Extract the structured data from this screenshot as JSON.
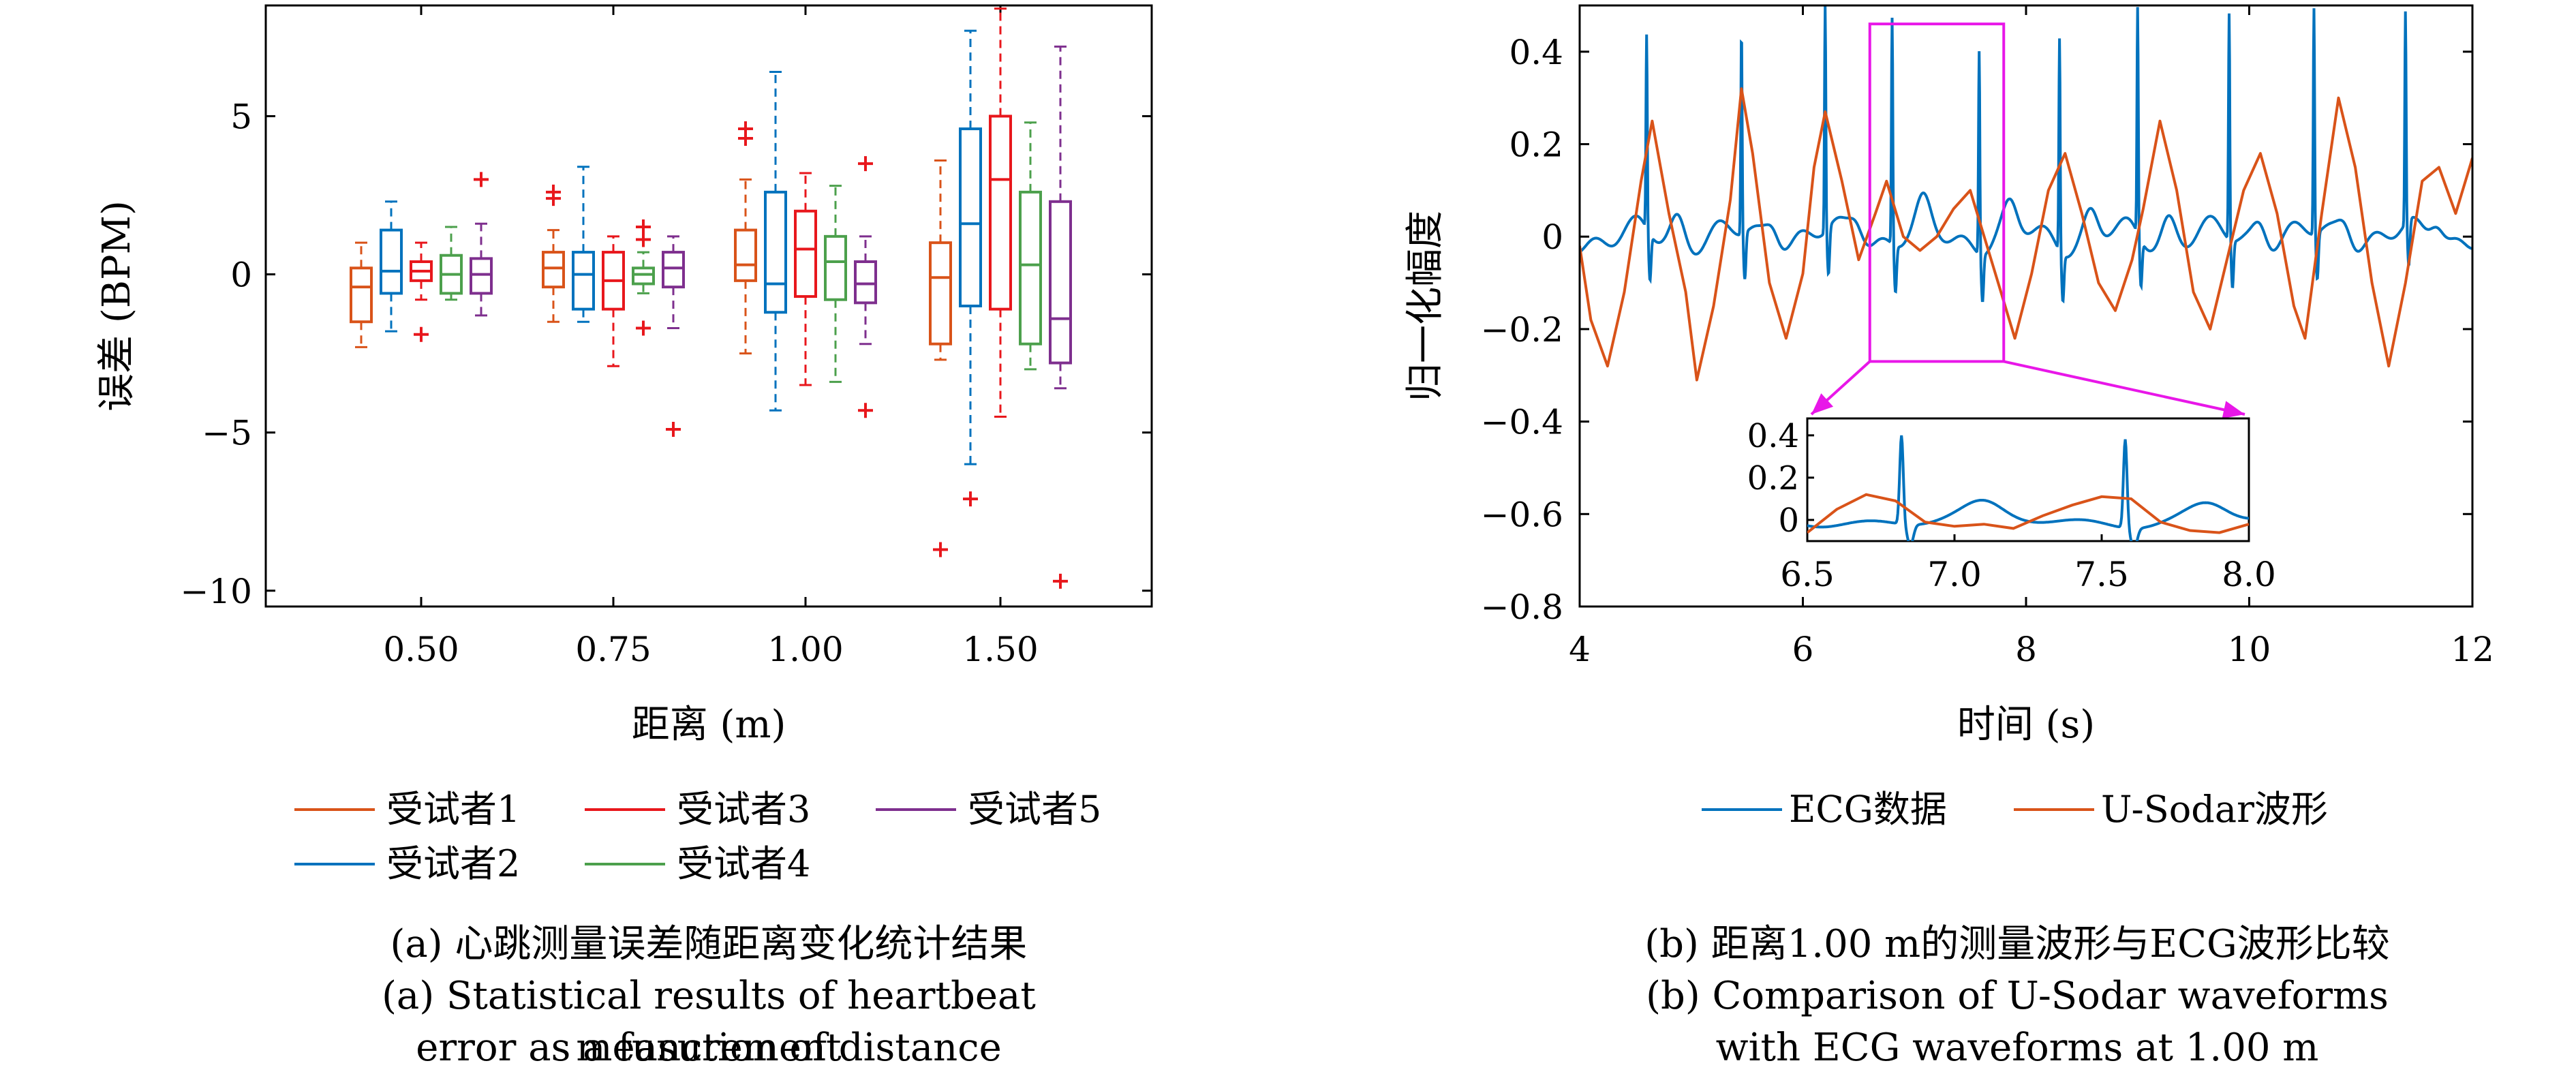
{
  "chart_data": [
    {
      "type": "box",
      "xlabel": "距离 (m)",
      "ylabel": "误差 (BPM)",
      "ylim": [
        -10.5,
        8.5
      ],
      "yticks": [
        5,
        0,
        -5,
        -10
      ],
      "ytick_labels": [
        "5",
        "0",
        "−5",
        "−10"
      ],
      "categories": [
        "0.50",
        "0.75",
        "1.00",
        "1.50"
      ],
      "legend_position": "bottom",
      "legend": [
        "受试者1",
        "受试者3",
        "受试者5",
        "受试者2",
        "受试者4"
      ],
      "series": [
        {
          "name": "受试者1",
          "color": "#D95319",
          "boxes": [
            {
              "whislo": -2.3,
              "q1": -1.5,
              "med": -0.4,
              "q3": 0.2,
              "whishi": 1.0,
              "fliers": []
            },
            {
              "whislo": -1.5,
              "q1": -0.4,
              "med": 0.2,
              "q3": 0.7,
              "whishi": 1.4,
              "fliers": [
                2.4,
                2.6
              ]
            },
            {
              "whislo": -2.5,
              "q1": -0.2,
              "med": 0.3,
              "q3": 1.4,
              "whishi": 3.0,
              "fliers": [
                4.3,
                4.6
              ]
            },
            {
              "whislo": -2.7,
              "q1": -2.2,
              "med": -0.1,
              "q3": 1.0,
              "whishi": 3.6,
              "fliers": [
                -8.7
              ]
            }
          ]
        },
        {
          "name": "受试者2",
          "color": "#0072BD",
          "boxes": [
            {
              "whislo": -1.8,
              "q1": -0.6,
              "med": 0.1,
              "q3": 1.4,
              "whishi": 2.3,
              "fliers": []
            },
            {
              "whislo": -1.5,
              "q1": -1.1,
              "med": 0.0,
              "q3": 0.7,
              "whishi": 3.4,
              "fliers": []
            },
            {
              "whislo": -4.3,
              "q1": -1.2,
              "med": -0.3,
              "q3": 2.6,
              "whishi": 6.4,
              "fliers": []
            },
            {
              "whislo": -6.0,
              "q1": -1.0,
              "med": 1.6,
              "q3": 4.6,
              "whishi": 7.7,
              "fliers": [
                -7.1
              ]
            }
          ]
        },
        {
          "name": "受试者3",
          "color": "#E8171C",
          "boxes": [
            {
              "whislo": -0.8,
              "q1": -0.2,
              "med": 0.1,
              "q3": 0.4,
              "whishi": 1.0,
              "fliers": [
                -1.9
              ]
            },
            {
              "whislo": -2.9,
              "q1": -1.1,
              "med": -0.2,
              "q3": 0.7,
              "whishi": 1.2,
              "fliers": []
            },
            {
              "whislo": -3.5,
              "q1": -0.7,
              "med": 0.8,
              "q3": 2.0,
              "whishi": 3.2,
              "fliers": []
            },
            {
              "whislo": -4.5,
              "q1": -1.1,
              "med": 3.0,
              "q3": 5.0,
              "whishi": 8.4,
              "fliers": []
            }
          ]
        },
        {
          "name": "受试者4",
          "color": "#4CA04C",
          "boxes": [
            {
              "whislo": -0.8,
              "q1": -0.6,
              "med": 0.0,
              "q3": 0.6,
              "whishi": 1.5,
              "fliers": []
            },
            {
              "whislo": -0.6,
              "q1": -0.3,
              "med": 0.0,
              "q3": 0.2,
              "whishi": 0.7,
              "fliers": [
                -1.7,
                1.1,
                1.5
              ]
            },
            {
              "whislo": -3.4,
              "q1": -0.8,
              "med": 0.4,
              "q3": 1.2,
              "whishi": 2.8,
              "fliers": []
            },
            {
              "whislo": -3.0,
              "q1": -2.2,
              "med": 0.3,
              "q3": 2.6,
              "whishi": 4.8,
              "fliers": []
            }
          ]
        },
        {
          "name": "受试者5",
          "color": "#7E2F8E",
          "boxes": [
            {
              "whislo": -1.3,
              "q1": -0.6,
              "med": 0.0,
              "q3": 0.5,
              "whishi": 1.6,
              "fliers": [
                3.0
              ]
            },
            {
              "whislo": -1.7,
              "q1": -0.4,
              "med": 0.2,
              "q3": 0.7,
              "whishi": 1.2,
              "fliers": [
                -4.9
              ]
            },
            {
              "whislo": -2.2,
              "q1": -0.9,
              "med": -0.3,
              "q3": 0.4,
              "whishi": 1.2,
              "fliers": [
                -4.3,
                3.5
              ]
            },
            {
              "whislo": -3.6,
              "q1": -2.8,
              "med": -1.4,
              "q3": 2.3,
              "whishi": 7.2,
              "fliers": [
                -9.7
              ]
            }
          ]
        }
      ]
    },
    {
      "type": "line",
      "xlabel": "时间 (s)",
      "ylabel": "归一化幅度",
      "xlim": [
        4,
        12
      ],
      "ylim": [
        -0.8,
        0.5
      ],
      "xticks": [
        4,
        6,
        8,
        10,
        12
      ],
      "xtick_labels": [
        "4",
        "6",
        "8",
        "10",
        "12"
      ],
      "yticks": [
        0.4,
        0.2,
        0,
        -0.2,
        -0.4,
        -0.6,
        -0.8
      ],
      "ytick_labels": [
        "0.4",
        "0.2",
        "0",
        "−0.2",
        "−0.4",
        "−0.6",
        "−0.8"
      ],
      "legend_position": "bottom",
      "highlight_box": {
        "x": [
          6.6,
          7.8
        ],
        "y": [
          -0.27,
          0.46
        ],
        "color": "#E817E8"
      },
      "series": [
        {
          "name": "ECG数据",
          "color": "#0072BD",
          "r_peaks": [
            4.6,
            5.45,
            6.2,
            6.8,
            7.58,
            8.3,
            9.0,
            9.82,
            10.58,
            11.4
          ],
          "peak_amplitude": [
            0.42,
            0.44,
            0.49,
            0.49,
            0.44,
            0.46,
            0.49,
            0.49,
            0.49,
            0.46
          ],
          "baseline": 0.0
        },
        {
          "name": "U-Sodar波形",
          "color": "#D95319",
          "x": [
            4.0,
            4.1,
            4.25,
            4.4,
            4.55,
            4.65,
            4.8,
            4.95,
            5.05,
            5.2,
            5.35,
            5.45,
            5.55,
            5.7,
            5.85,
            6.0,
            6.1,
            6.2,
            6.35,
            6.5,
            6.65,
            6.75,
            6.9,
            7.05,
            7.2,
            7.35,
            7.5,
            7.6,
            7.75,
            7.9,
            8.05,
            8.2,
            8.35,
            8.5,
            8.65,
            8.8,
            8.95,
            9.05,
            9.2,
            9.35,
            9.5,
            9.65,
            9.8,
            9.95,
            10.1,
            10.25,
            10.4,
            10.5,
            10.65,
            10.8,
            10.95,
            11.1,
            11.25,
            11.4,
            11.55,
            11.7,
            11.85,
            12.0
          ],
          "y": [
            -0.02,
            -0.18,
            -0.28,
            -0.12,
            0.12,
            0.25,
            0.05,
            -0.12,
            -0.31,
            -0.15,
            0.08,
            0.32,
            0.18,
            -0.1,
            -0.22,
            -0.08,
            0.15,
            0.27,
            0.12,
            -0.05,
            0.05,
            0.12,
            0.0,
            -0.03,
            0.0,
            0.06,
            0.1,
            0.02,
            -0.1,
            -0.22,
            -0.08,
            0.1,
            0.18,
            0.05,
            -0.1,
            -0.16,
            -0.05,
            0.06,
            0.25,
            0.1,
            -0.12,
            -0.2,
            -0.05,
            0.1,
            0.18,
            0.05,
            -0.15,
            -0.22,
            0.05,
            0.3,
            0.15,
            -0.1,
            -0.28,
            -0.1,
            0.12,
            0.15,
            0.05,
            0.17
          ]
        }
      ],
      "inset": {
        "xlim": [
          6.5,
          8.0
        ],
        "ylim": [
          -0.1,
          0.48
        ],
        "xticks": [
          6.5,
          7.0,
          7.5,
          8.0
        ],
        "xtick_labels": [
          "6.5",
          "7.0",
          "7.5",
          "8.0"
        ],
        "yticks": [
          0.4,
          0.2,
          0
        ],
        "ytick_labels": [
          "0.4",
          "0.2",
          "0"
        ],
        "ecg_peaks": [
          6.82,
          7.58
        ],
        "sodar_x": [
          6.5,
          6.6,
          6.7,
          6.8,
          6.9,
          7.0,
          7.1,
          7.2,
          7.3,
          7.4,
          7.5,
          7.6,
          7.7,
          7.8,
          7.9,
          8.0
        ],
        "sodar_y": [
          -0.06,
          0.05,
          0.12,
          0.09,
          -0.01,
          -0.03,
          -0.02,
          -0.04,
          0.02,
          0.07,
          0.11,
          0.1,
          -0.01,
          -0.05,
          -0.06,
          -0.02
        ]
      }
    }
  ],
  "captions": {
    "a_zh": "(a) 心跳测量误差随距离变化统计结果",
    "a_en1": "(a) Statistical results of heartbeat measurement",
    "a_en2": "error as a function of distance",
    "b_zh": "(b) 距离1.00 m的测量波形与ECG波形比较",
    "b_en1": "(b) Comparison of U-Sodar waveforms",
    "b_en2": "with ECG waveforms at 1.00 m"
  }
}
